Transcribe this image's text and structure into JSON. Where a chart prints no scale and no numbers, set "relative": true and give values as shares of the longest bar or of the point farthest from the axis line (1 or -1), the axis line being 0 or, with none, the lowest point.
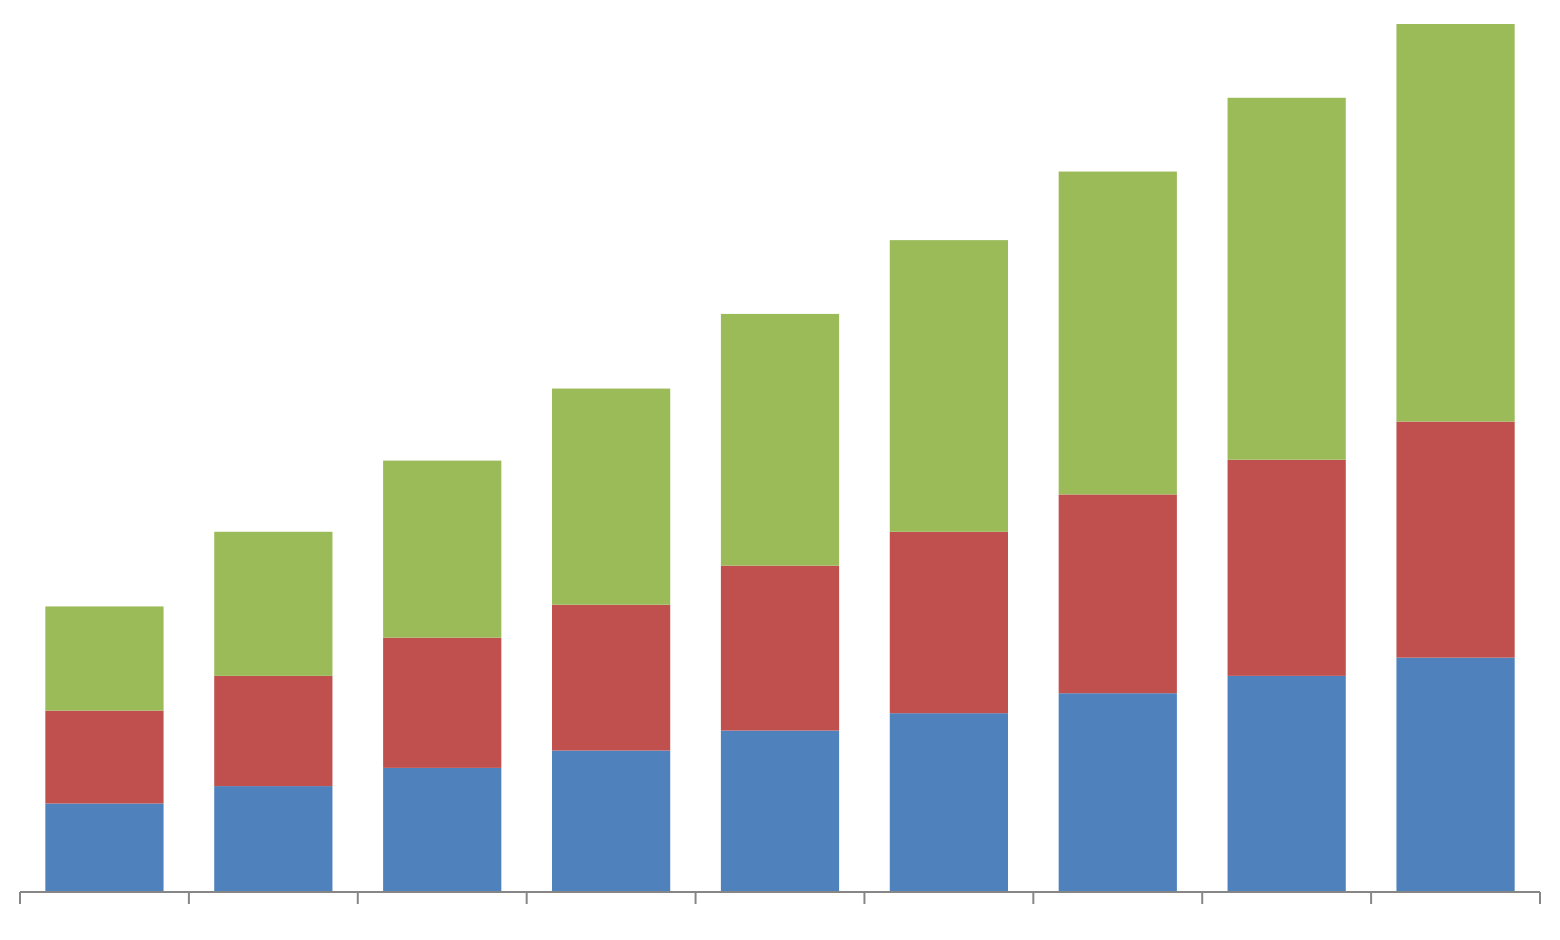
{
  "chart_data": {
    "type": "bar",
    "stacked": true,
    "relative": true,
    "categories": [
      null,
      null,
      null,
      null,
      null,
      null,
      null,
      null,
      null
    ],
    "series": [
      {
        "color": "#4f81bd",
        "values": [
          0.102,
          0.122,
          0.143,
          0.163,
          0.186,
          0.206,
          0.229,
          0.249,
          0.27
        ]
      },
      {
        "color": "#c0504d",
        "values": [
          0.107,
          0.127,
          0.15,
          0.168,
          0.19,
          0.209,
          0.229,
          0.249,
          0.272
        ]
      },
      {
        "color": "#9bbb59",
        "values": [
          0.12,
          0.166,
          0.204,
          0.249,
          0.29,
          0.336,
          0.372,
          0.417,
          0.458
        ]
      }
    ]
  }
}
